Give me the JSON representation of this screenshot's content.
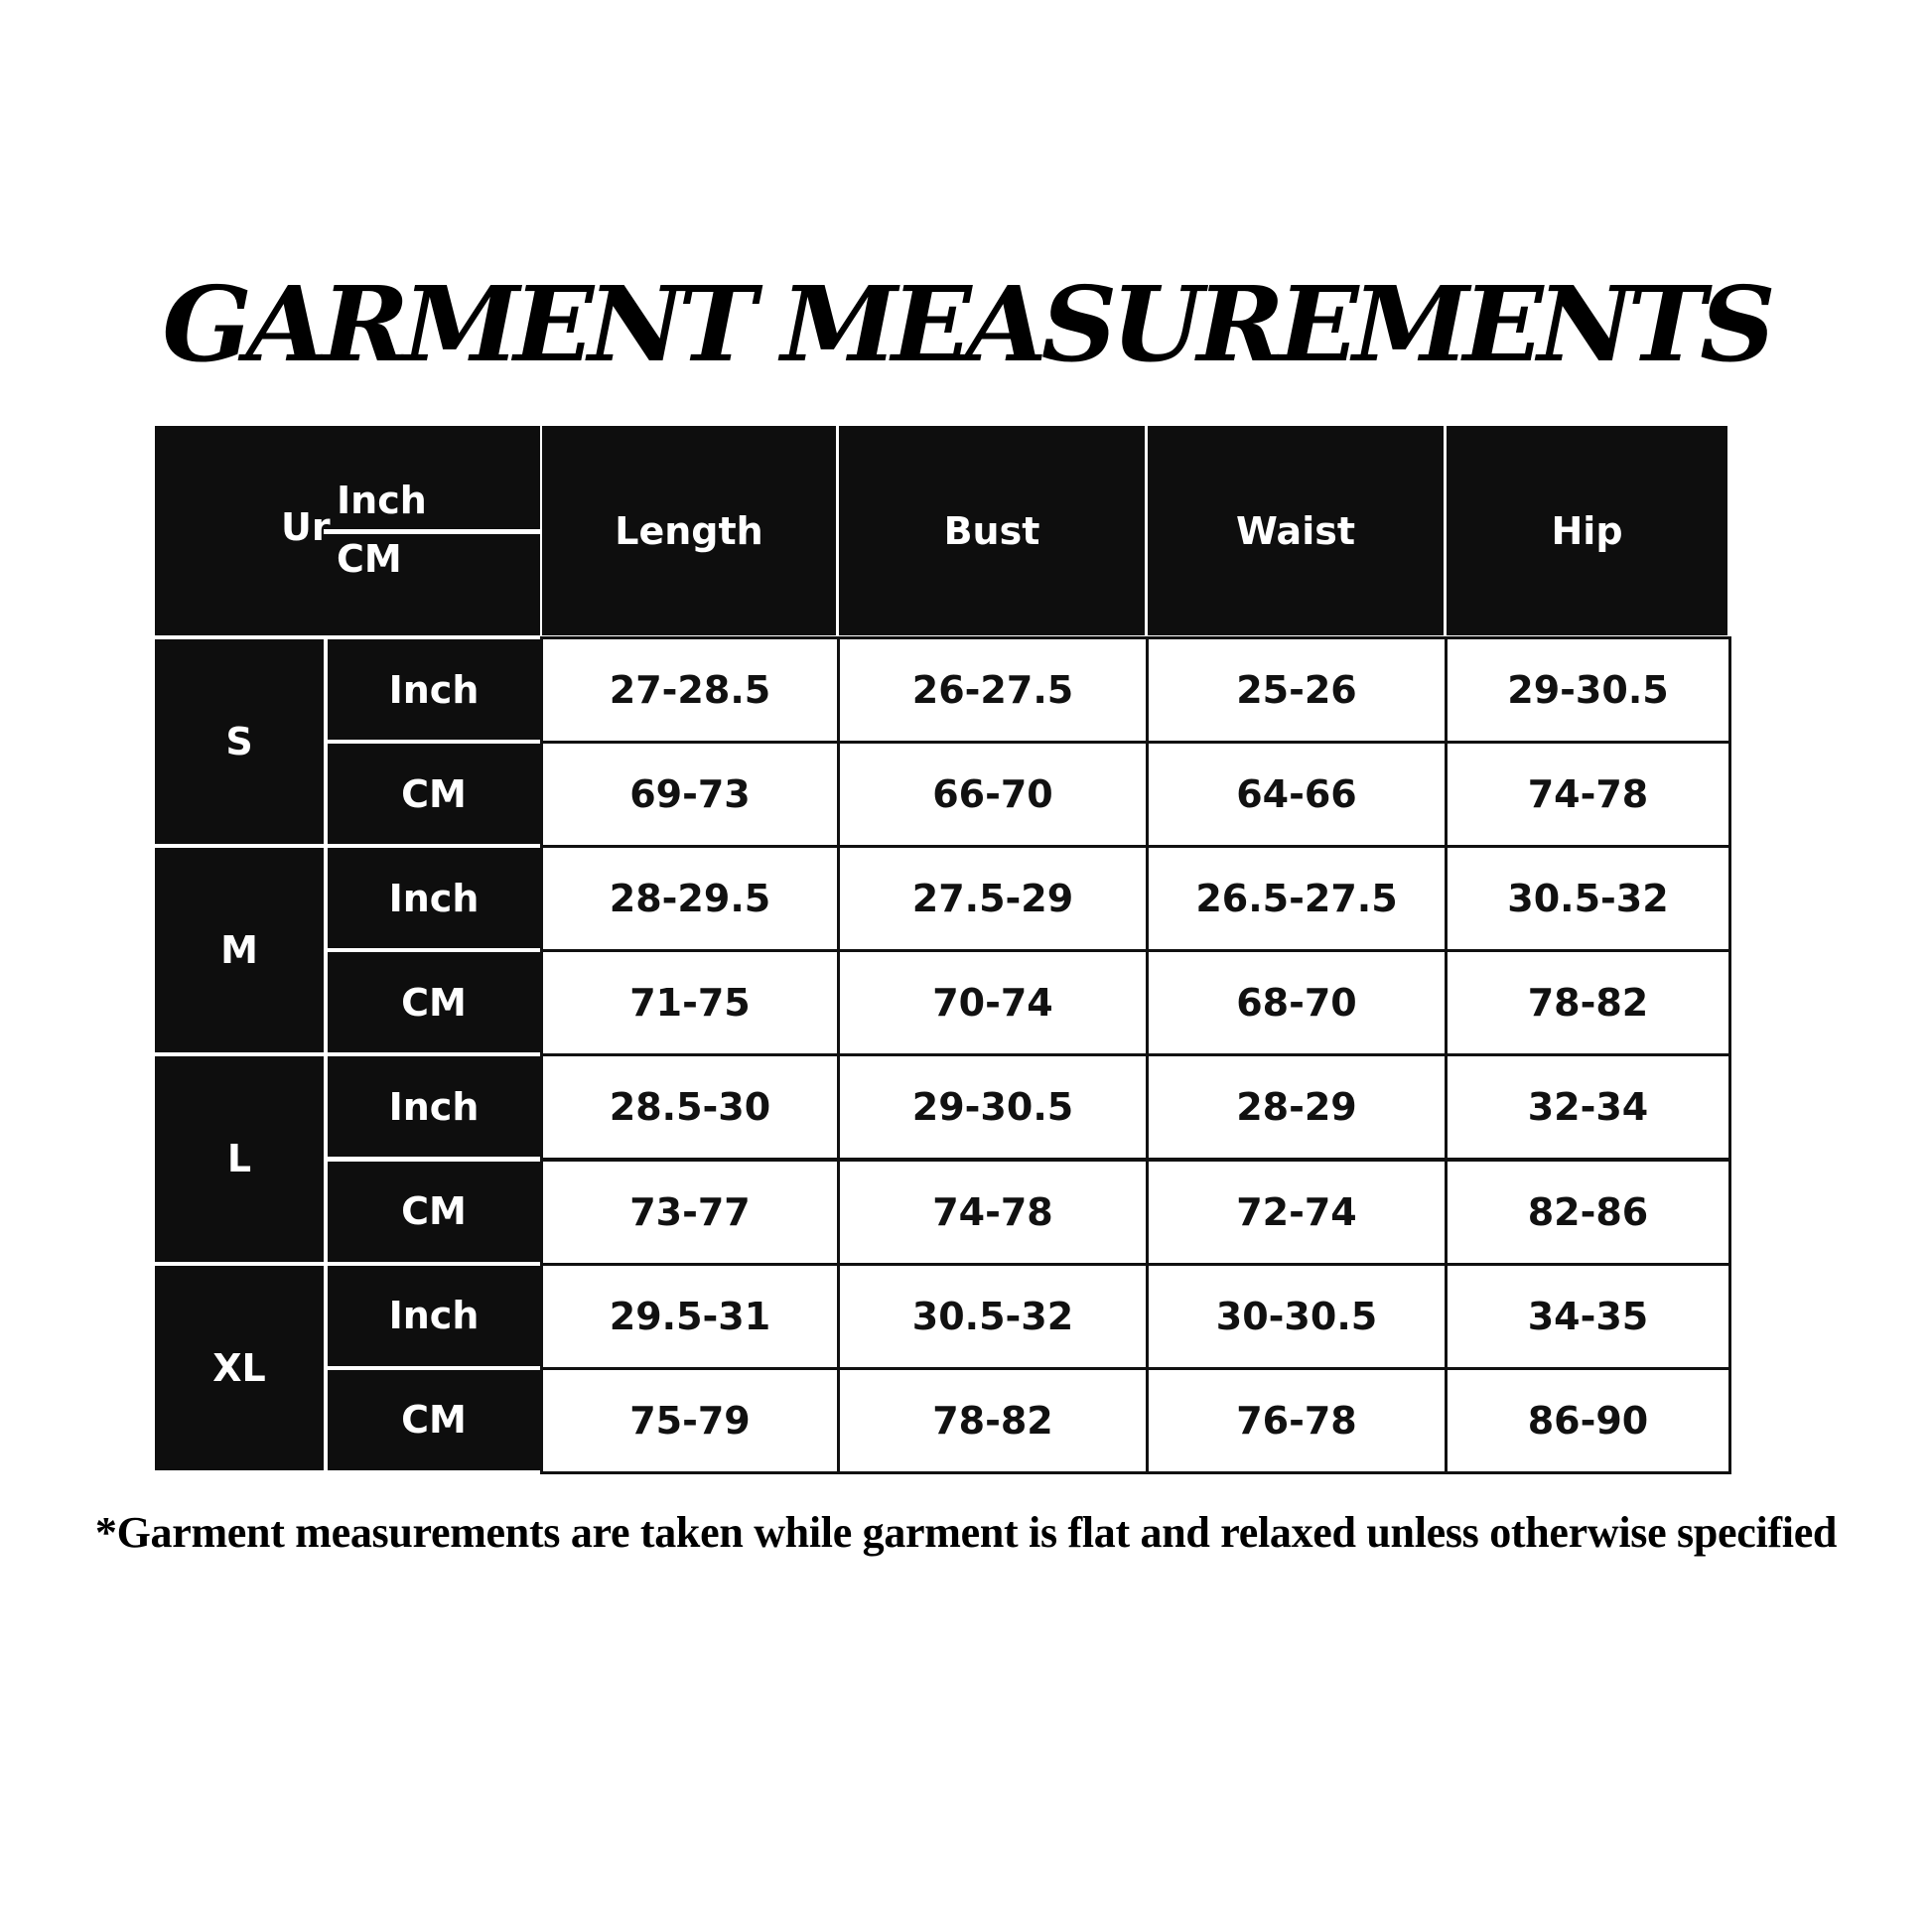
{
  "title": "GARMENT MEASUREMENTS",
  "table": {
    "corner": {
      "label_partial": "Ur",
      "top_unit": "Inch",
      "bottom_unit": "CM"
    },
    "columns": [
      "Length",
      "Bust",
      "Waist",
      "Hip"
    ],
    "sizes": [
      {
        "size": "S",
        "rows": [
          {
            "unit": "Inch",
            "values": [
              "27-28.5",
              "26-27.5",
              "25-26",
              "29-30.5"
            ]
          },
          {
            "unit": "CM",
            "values": [
              "69-73",
              "66-70",
              "64-66",
              "74-78"
            ]
          }
        ]
      },
      {
        "size": "M",
        "rows": [
          {
            "unit": "Inch",
            "values": [
              "28-29.5",
              "27.5-29",
              "26.5-27.5",
              "30.5-32"
            ]
          },
          {
            "unit": "CM",
            "values": [
              "71-75",
              "70-74",
              "68-70",
              "78-82"
            ]
          }
        ]
      },
      {
        "size": "L",
        "rows": [
          {
            "unit": "Inch",
            "values": [
              "28.5-30",
              "29-30.5",
              "28-29",
              "32-34"
            ]
          },
          {
            "unit": "CM",
            "values": [
              "73-77",
              "74-78",
              "72-74",
              "82-86"
            ]
          }
        ]
      },
      {
        "size": "XL",
        "rows": [
          {
            "unit": "Inch",
            "values": [
              "29.5-31",
              "30.5-32",
              "30-30.5",
              "34-35"
            ]
          },
          {
            "unit": "CM",
            "values": [
              "75-79",
              "78-82",
              "76-78",
              "86-90"
            ]
          }
        ]
      }
    ]
  },
  "footer_note": "*Garment measurements are taken while garment is flat and relaxed unless otherwise specified"
}
